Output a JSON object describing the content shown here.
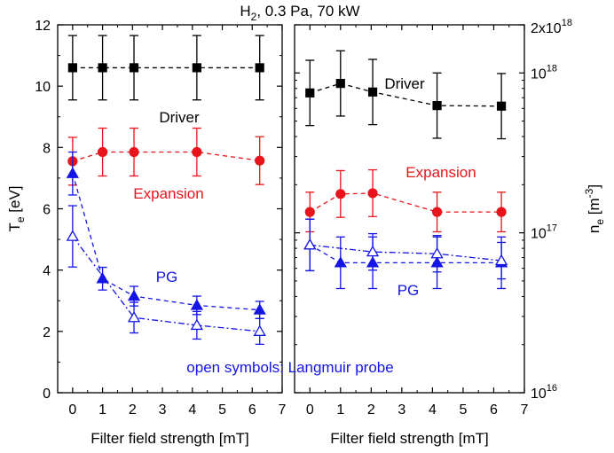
{
  "title": {
    "species": "H",
    "species_sub": "2",
    "rest": ", 0.3 Pa, 70 kW"
  },
  "note": "open symbols: Langmuir probe",
  "colors": {
    "driver": "#000000",
    "expansion": "#e8141b",
    "pg": "#1414e6"
  },
  "chart_data": [
    {
      "panel": "left",
      "type": "line",
      "xlabel": "Filter field strength [mT]",
      "ylabel_main": "T",
      "ylabel_sub": "e",
      "ylabel_unit": " [eV]",
      "xlim": [
        -0.5,
        7
      ],
      "ylim": [
        0,
        12
      ],
      "x_ticks": [
        0,
        1,
        2,
        3,
        4,
        5,
        6,
        7
      ],
      "y_ticks": [
        0,
        2,
        4,
        6,
        8,
        10,
        12
      ],
      "series": [
        {
          "id": "driver",
          "label": "Driver",
          "color": "#000000",
          "marker": "square",
          "filled": true,
          "dash": "dash",
          "x": [
            0,
            1,
            2.05,
            4.15,
            6.25
          ],
          "y": [
            10.6,
            10.6,
            10.6,
            10.6,
            10.6
          ],
          "err": [
            1.05,
            1.05,
            1.05,
            1.05,
            1.05
          ]
        },
        {
          "id": "expansion",
          "label": "Expansion",
          "color": "#e8141b",
          "marker": "circle",
          "filled": true,
          "dash": "dash",
          "x": [
            0,
            1,
            2.05,
            4.15,
            6.25
          ],
          "y": [
            7.55,
            7.85,
            7.85,
            7.85,
            7.57
          ],
          "err": [
            0.78,
            0.78,
            0.78,
            0.78,
            0.78
          ]
        },
        {
          "id": "pg_filled",
          "label": "PG",
          "color": "#1414e6",
          "marker": "triangle",
          "filled": true,
          "dash": "dash",
          "x": [
            0,
            1,
            2.05,
            4.15,
            6.25
          ],
          "y": [
            7.15,
            3.72,
            3.15,
            2.85,
            2.7
          ],
          "err": [
            0.7,
            0.37,
            0.32,
            0.3,
            0.28
          ]
        },
        {
          "id": "pg_open",
          "label": "",
          "color": "#1414e6",
          "marker": "triangle",
          "filled": false,
          "dash": "dashdot",
          "x": [
            0,
            2.05,
            4.15,
            6.25
          ],
          "y": [
            5.1,
            2.45,
            2.2,
            2.0
          ],
          "err": [
            1.0,
            0.5,
            0.45,
            0.42
          ]
        }
      ]
    },
    {
      "panel": "right",
      "type": "line",
      "xlabel": "Filter field strength [mT]",
      "ylabel_main": "n",
      "ylabel_sub": "e",
      "ylabel_unit": " [m",
      "ylabel_sup": "-3",
      "ylabel_close": "]",
      "xlim": [
        -0.5,
        7
      ],
      "ylim": [
        1e+16,
        2e+18
      ],
      "yscale": "log",
      "x_ticks": [
        0,
        1,
        2,
        3,
        4,
        5,
        6,
        7
      ],
      "y_ticks": [
        {
          "value": 1e+16,
          "base": "10",
          "exp": "16"
        },
        {
          "value": 1e+17,
          "base": "10",
          "exp": "17"
        },
        {
          "value": 1e+18,
          "base": "10",
          "exp": "18"
        },
        {
          "value": 2e+18,
          "base": "2x10",
          "exp": "18"
        }
      ],
      "series": [
        {
          "id": "driver",
          "label": "Driver",
          "color": "#000000",
          "marker": "square",
          "filled": true,
          "dash": "dash",
          "x": [
            0,
            1,
            2.05,
            4.15,
            6.25
          ],
          "y": [
            7.5e+17,
            8.6e+17,
            7.6e+17,
            6.25e+17,
            6.2e+17
          ],
          "err_factor": [
            1.6,
            1.6,
            1.6,
            1.6,
            1.6
          ]
        },
        {
          "id": "expansion",
          "label": "Expansion",
          "color": "#e8141b",
          "marker": "circle",
          "filled": true,
          "dash": "dash",
          "x": [
            0,
            1,
            2.05,
            4.15,
            6.25
          ],
          "y": [
            1.35e+17,
            1.75e+17,
            1.77e+17,
            1.35e+17,
            1.35e+17
          ],
          "err_factor": [
            1.33,
            1.4,
            1.4,
            1.33,
            1.33
          ]
        },
        {
          "id": "pg_filled",
          "label": "PG",
          "color": "#1414e6",
          "marker": "triangle",
          "filled": true,
          "dash": "dash",
          "x": [
            0,
            1,
            2.05,
            4.15,
            6.25
          ],
          "y": [
            8.4e+16,
            6.5e+16,
            6.5e+16,
            6.5e+16,
            6.5e+16
          ],
          "err_factor": [
            1.45,
            1.45,
            1.45,
            1.45,
            1.45
          ]
        },
        {
          "id": "pg_open",
          "label": "",
          "color": "#1414e6",
          "marker": "triangle",
          "filled": false,
          "dash": "dashdot",
          "x": [
            0,
            2.05,
            4.15,
            6.25
          ],
          "y": [
            8.4e+16,
            7.6e+16,
            7.4e+16,
            6.7e+16
          ],
          "err_factor": [
            1.45,
            1.3,
            1.3,
            1.3
          ]
        }
      ]
    }
  ]
}
